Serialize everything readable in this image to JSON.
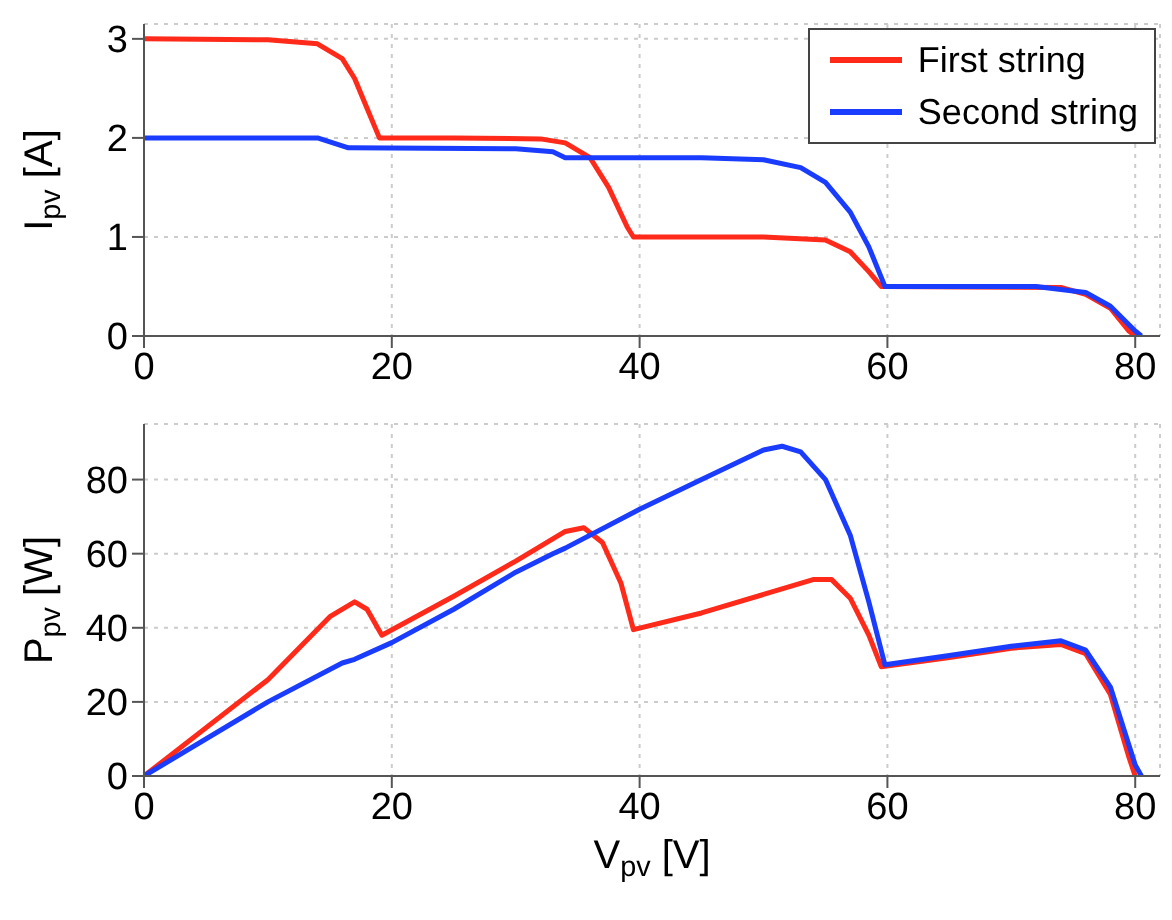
{
  "chart_data": [
    {
      "type": "line",
      "ylabel": "I$_{pv}$ [A]",
      "xlim": [
        0,
        82
      ],
      "xticks": [
        0,
        20,
        40,
        60,
        80
      ],
      "ylim": [
        0,
        3.15
      ],
      "yticks": [
        0,
        1,
        2,
        3
      ],
      "grid": true,
      "legend": "top right",
      "series": [
        {
          "name": "First string",
          "color": "#ff2a1a",
          "x": [
            0,
            10,
            14,
            16,
            17,
            18,
            19,
            25,
            32,
            34,
            36,
            37.5,
            39,
            39.5,
            50,
            55,
            57,
            58.5,
            59.5,
            74,
            76,
            78,
            79.5,
            80
          ],
          "values": [
            3,
            2.99,
            2.95,
            2.8,
            2.6,
            2.3,
            2,
            2,
            1.99,
            1.95,
            1.8,
            1.5,
            1.1,
            1,
            1,
            0.97,
            0.85,
            0.65,
            0.5,
            0.49,
            0.42,
            0.28,
            0.05,
            0
          ]
        },
        {
          "name": "Second string",
          "color": "#1a3cff",
          "x": [
            0,
            14,
            16.5,
            30,
            33,
            34,
            45,
            50,
            53,
            55,
            57,
            58.5,
            59.8,
            72,
            76,
            78,
            80,
            80.5
          ],
          "values": [
            2,
            2,
            1.9,
            1.89,
            1.86,
            1.8,
            1.8,
            1.78,
            1.7,
            1.55,
            1.25,
            0.9,
            0.5,
            0.5,
            0.44,
            0.3,
            0.05,
            0
          ]
        }
      ]
    },
    {
      "type": "line",
      "xlabel": "V$_{pv}$ [V]",
      "ylabel": "P$_{pv}$ [W]",
      "xlim": [
        0,
        82
      ],
      "xticks": [
        0,
        20,
        40,
        60,
        80
      ],
      "ylim": [
        0,
        95
      ],
      "yticks": [
        0,
        20,
        40,
        60,
        80
      ],
      "grid": true,
      "series": [
        {
          "color": "#ff2a1a",
          "x": [
            0,
            10,
            15,
            17,
            18,
            19.2,
            25,
            30,
            34,
            35.5,
            37,
            38.5,
            39.5,
            45,
            50,
            54,
            55.5,
            57,
            58.5,
            59.5,
            65,
            70,
            74,
            76,
            78,
            79.5,
            80
          ],
          "values": [
            0,
            26,
            43,
            47,
            45,
            38,
            48.5,
            58,
            66,
            67,
            63,
            52,
            39.5,
            44,
            49,
            53,
            53,
            48,
            38,
            29.5,
            32,
            34.5,
            35.5,
            33,
            22,
            5,
            0
          ]
        },
        {
          "color": "#1a3cff",
          "x": [
            0,
            10,
            16,
            17,
            20,
            25,
            30,
            33,
            34,
            40,
            45,
            50,
            51.5,
            53,
            55,
            57,
            58.5,
            59.8,
            65,
            70,
            74,
            76,
            78,
            80,
            80.5
          ],
          "values": [
            0,
            20,
            30.5,
            31.5,
            36,
            45,
            55,
            60,
            61.5,
            72,
            80,
            88,
            89,
            87.5,
            80,
            65,
            47,
            30,
            32.5,
            35,
            36.5,
            34,
            24,
            3,
            0
          ]
        }
      ]
    }
  ]
}
